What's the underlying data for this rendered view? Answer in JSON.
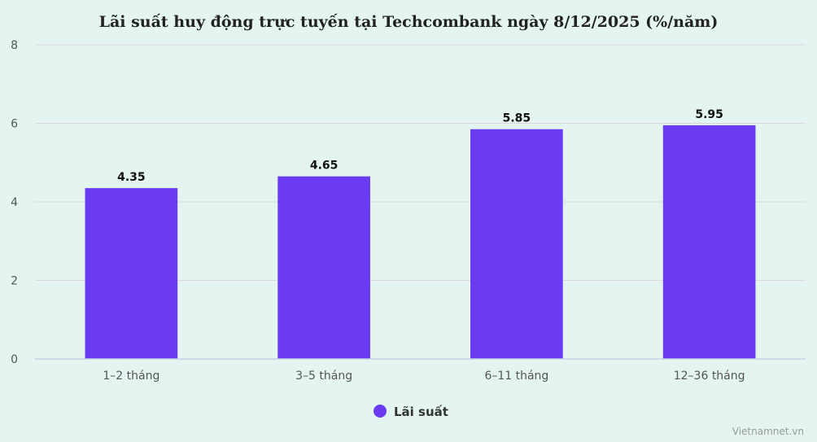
{
  "chart_data": {
    "type": "bar",
    "title": "Lãi suất huy động trực tuyến tại Techcombank ngày 8/12/2025 (%/năm)",
    "categories": [
      "1–2 tháng",
      "3–5 tháng",
      "6–11 tháng",
      "12–36 tháng"
    ],
    "series": [
      {
        "name": "Lãi suất",
        "values": [
          4.35,
          4.65,
          5.85,
          5.95
        ],
        "color": "#6a3bf2"
      }
    ],
    "data_labels": [
      "4.35",
      "4.65",
      "5.85",
      "5.95"
    ],
    "ylim": [
      0,
      8
    ],
    "yticks": [
      0,
      2,
      4,
      6,
      8
    ],
    "grid": true,
    "legend_position": "bottom-center"
  },
  "credit": "Vietnamnet.vn"
}
